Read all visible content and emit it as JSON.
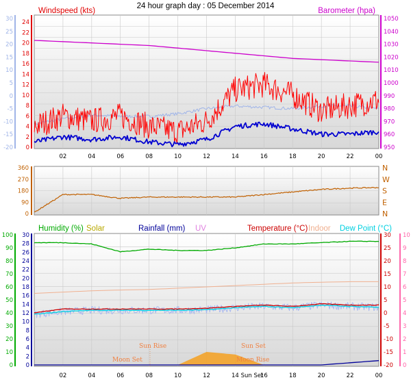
{
  "title": "24 hour graph day : 05 December 2014",
  "colors": {
    "wind": "#e00000",
    "gust": "#ff0000",
    "avg": "#0000d0",
    "baro": "#cc00cc",
    "leftdim": "#9fb4e8",
    "winddir": "#c06000",
    "humidity": "#00aa00",
    "solar": "#b8a800",
    "rain": "#000099",
    "uv": "#e080e0",
    "temp": "#cc0000",
    "indoor": "#f0b090",
    "dew": "#00d0e0",
    "heatcol": "#ff66aa",
    "solarfill": "#f5a020"
  },
  "panel1": {
    "left_title": "Windspeed (kts)",
    "right_title": "Barometer (hpa)",
    "outer_ticks": [
      "30",
      "25",
      "20",
      "15",
      "10",
      "5",
      "0",
      "-5",
      "-10",
      "-15",
      "-20"
    ],
    "wind_ticks": [
      "24",
      "22",
      "20",
      "18",
      "16",
      "14",
      "12",
      "10",
      "8",
      "6",
      "4",
      "2",
      "0"
    ],
    "baro_ticks": [
      "1050",
      "1040",
      "1030",
      "1020",
      "1010",
      "1000",
      "990",
      "980",
      "970",
      "960",
      "950"
    ]
  },
  "panel2": {
    "deg_ticks": [
      "360",
      "270",
      "180",
      "90",
      "0"
    ],
    "compass": [
      "N",
      "W",
      "S",
      "E",
      "N"
    ]
  },
  "panel3": {
    "labels": {
      "humidity": "Humidity (%)",
      "solar": "Solar",
      "rain": "Rainfall (mm)",
      "uv": "UV",
      "temp": "Temperature (°C)",
      "indoor": "Indoor",
      "dew": "Dew Point (°C)"
    },
    "humidity_ticks": [
      "100",
      "90",
      "80",
      "70",
      "60",
      "50",
      "40",
      "30",
      "20",
      "10",
      "0"
    ],
    "rain_ticks": [
      "30",
      "28",
      "26",
      "24",
      "22",
      "20",
      "18",
      "16",
      "14",
      "12",
      "10",
      "8",
      "6",
      "4",
      "2",
      "0"
    ],
    "temp_ticks": [
      "30",
      "25",
      "20",
      "15",
      "10",
      "5",
      "0",
      "-5",
      "-10",
      "-15",
      "-20"
    ],
    "right2_ticks": [
      "10",
      "9",
      "8",
      "7",
      "6",
      "5",
      "4",
      "3",
      "2",
      "1",
      "0"
    ],
    "annotations": {
      "moon_set": "Moon Set",
      "sun_rise": "Sun Rise",
      "sun_set": "Sun Set",
      "moon_rise": "Moon Rise"
    }
  },
  "x_labels": [
    "02",
    "04",
    "06",
    "08",
    "10",
    "12",
    "14",
    "16",
    "18",
    "20",
    "22",
    "00"
  ],
  "x_extra_label": "Sun Set",
  "chart_data": [
    {
      "type": "line",
      "title": "Windspeed (kts) / Barometer (hpa)",
      "x": [
        "00",
        "02",
        "04",
        "06",
        "08",
        "10",
        "12",
        "14",
        "16",
        "18",
        "20",
        "22",
        "00"
      ],
      "series": [
        {
          "name": "Barometer (hpa)",
          "values": [
            1033,
            1032,
            1031,
            1030,
            1029,
            1027,
            1025,
            1023,
            1021,
            1019,
            1018,
            1017,
            1016
          ]
        },
        {
          "name": "Wind gust (kts)",
          "values": [
            4,
            6,
            5,
            6,
            4,
            3,
            5,
            11,
            12,
            10,
            7,
            8,
            9
          ]
        },
        {
          "name": "Wind average (kts)",
          "values": [
            1,
            2,
            1.5,
            2,
            1,
            0.5,
            1.5,
            4,
            4.5,
            3.5,
            2.5,
            2.5,
            3
          ]
        },
        {
          "values": [
            -11,
            -9,
            -7.5,
            -8,
            -8,
            -7,
            -5,
            -4,
            -4.5,
            -5,
            -4,
            -4,
            -5
          ]
        }
      ]
    },
    {
      "type": "line",
      "title": "Wind direction",
      "x": [
        "00",
        "02",
        "04",
        "06",
        "08",
        "10",
        "12",
        "14",
        "16",
        "18",
        "20",
        "22",
        "00"
      ],
      "ylim": [
        0,
        360
      ],
      "series": [
        {
          "values": [
            10,
            150,
            150,
            120,
            130,
            130,
            130,
            130,
            150,
            170,
            190,
            200,
            205
          ]
        }
      ]
    },
    {
      "type": "line",
      "title": "Humidity / Rainfall / Temperature / Dew Point",
      "x": [
        "00",
        "02",
        "04",
        "06",
        "08",
        "10",
        "12",
        "14",
        "16",
        "18",
        "20",
        "22",
        "00"
      ],
      "series": [
        {
          "name": "Humidity (%)",
          "values": [
            94,
            94,
            93,
            87,
            89,
            88,
            88,
            90,
            93,
            93,
            94,
            95,
            95
          ]
        },
        {
          "name": "Temperature (°C)",
          "values": [
            0,
            1.5,
            1.5,
            1.5,
            1.5,
            1.5,
            1.8,
            2.5,
            3,
            2.5,
            3.5,
            3,
            3
          ]
        },
        {
          "name": "Dew Point (°C)",
          "values": [
            -0.5,
            0.5,
            1,
            1,
            1,
            1,
            1.2,
            2,
            2.5,
            2,
            3,
            2.5,
            2.2
          ]
        },
        {
          "name": "Indoor",
          "values": [
            7.5,
            8,
            8.5,
            8.8,
            9,
            9.5,
            10,
            10.5,
            11,
            11.5,
            11.8,
            12,
            12
          ]
        },
        {
          "name": "Solar",
          "values": [
            0,
            0,
            0,
            0,
            0,
            0,
            1,
            0.8,
            0,
            0,
            0,
            0,
            0
          ]
        },
        {
          "name": "Rainfall (mm)",
          "values": [
            0,
            0,
            0,
            0,
            0,
            0,
            0,
            0,
            0,
            0,
            0,
            0.5,
            1
          ]
        }
      ]
    }
  ]
}
